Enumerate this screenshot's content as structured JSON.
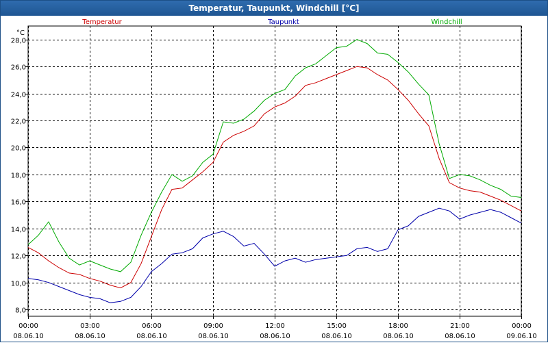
{
  "window": {
    "title": "Temperatur, Taupunkt, Windchill [°C]"
  },
  "chart_data": {
    "type": "line",
    "title": "Temperatur, Taupunkt, Windchill [°C]",
    "ylabel": "°C",
    "ylim": [
      7.5,
      29.0
    ],
    "yticks": [
      8,
      10,
      12,
      14,
      16,
      18,
      20,
      22,
      24,
      26,
      28
    ],
    "ytick_labels": [
      "8,0",
      "10,0",
      "12,0",
      "14,0",
      "16,0",
      "18,0",
      "20,0",
      "22,0",
      "24,0",
      "26,0",
      "28,0"
    ],
    "xlim": [
      0,
      24
    ],
    "xticks": [
      0,
      3,
      6,
      9,
      12,
      15,
      18,
      21,
      24
    ],
    "xtick_labels": [
      [
        "00:00",
        "08.06.10"
      ],
      [
        "03:00",
        "08.06.10"
      ],
      [
        "06:00",
        "08.06.10"
      ],
      [
        "09:00",
        "08.06.10"
      ],
      [
        "12:00",
        "08.06.10"
      ],
      [
        "15:00",
        "08.06.10"
      ],
      [
        "18:00",
        "08.06.10"
      ],
      [
        "21:00",
        "08.06.10"
      ],
      [
        "00:00",
        "09.06.10"
      ]
    ],
    "grid": true,
    "series": [
      {
        "name": "Temperatur",
        "color": "#cc0000",
        "x": [
          0,
          0.5,
          1,
          1.5,
          2,
          2.5,
          3,
          3.5,
          4,
          4.5,
          5,
          5.5,
          6,
          6.5,
          7,
          7.5,
          8,
          8.5,
          9,
          9.5,
          10,
          10.5,
          11,
          11.5,
          12,
          12.5,
          13,
          13.5,
          14,
          14.5,
          15,
          15.5,
          16,
          16.5,
          17,
          17.5,
          18,
          18.5,
          19,
          19.5,
          20,
          20.5,
          21,
          21.5,
          22,
          22.5,
          23,
          23.5,
          24
        ],
        "y": [
          12.6,
          12.2,
          11.6,
          11.1,
          10.7,
          10.6,
          10.3,
          10.1,
          9.8,
          9.6,
          10.0,
          11.4,
          13.4,
          15.4,
          16.9,
          17.0,
          17.6,
          18.2,
          18.9,
          20.4,
          20.9,
          21.2,
          21.6,
          22.5,
          23.0,
          23.3,
          23.8,
          24.6,
          24.8,
          25.1,
          25.4,
          25.7,
          26.0,
          25.9,
          25.4,
          25.0,
          24.3,
          23.5,
          22.5,
          21.6,
          19.2,
          17.4,
          17.0,
          16.8,
          16.7,
          16.4,
          16.1,
          15.7,
          15.3
        ]
      },
      {
        "name": "Taupunkt",
        "color": "#0000aa",
        "x": [
          0,
          0.5,
          1,
          1.5,
          2,
          2.5,
          3,
          3.5,
          4,
          4.5,
          5,
          5.5,
          6,
          6.5,
          7,
          7.5,
          8,
          8.5,
          9,
          9.5,
          10,
          10.5,
          11,
          11.5,
          12,
          12.5,
          13,
          13.5,
          14,
          14.5,
          15,
          15.5,
          16,
          16.5,
          17,
          17.5,
          18,
          18.5,
          19,
          19.5,
          20,
          20.5,
          21,
          21.5,
          22,
          22.5,
          23,
          23.5,
          24
        ],
        "y": [
          10.3,
          10.2,
          10.0,
          9.7,
          9.4,
          9.1,
          8.9,
          8.8,
          8.5,
          8.6,
          8.9,
          9.7,
          10.8,
          11.4,
          12.1,
          12.2,
          12.5,
          13.3,
          13.6,
          13.8,
          13.4,
          12.7,
          12.9,
          12.1,
          11.2,
          11.6,
          11.8,
          11.5,
          11.7,
          11.8,
          11.9,
          12.0,
          12.5,
          12.6,
          12.3,
          12.5,
          13.9,
          14.2,
          14.9,
          15.2,
          15.5,
          15.3,
          14.7,
          15.0,
          15.2,
          15.4,
          15.2,
          14.8,
          14.4
        ]
      },
      {
        "name": "Windchill",
        "color": "#00aa00",
        "x": [
          0,
          0.5,
          1,
          1.5,
          2,
          2.5,
          3,
          3.5,
          4,
          4.5,
          5,
          5.5,
          6,
          6.5,
          7,
          7.5,
          8,
          8.5,
          9,
          9.5,
          10,
          10.5,
          11,
          11.5,
          12,
          12.5,
          13,
          13.5,
          14,
          14.5,
          15,
          15.5,
          16,
          16.5,
          17,
          17.5,
          18,
          18.5,
          19,
          19.5,
          20,
          20.5,
          21,
          21.5,
          22,
          22.5,
          23,
          23.5,
          24
        ],
        "y": [
          12.8,
          13.5,
          14.5,
          13.0,
          11.8,
          11.3,
          11.6,
          11.3,
          11.0,
          10.8,
          11.5,
          13.5,
          15.2,
          16.7,
          18.0,
          17.5,
          17.9,
          18.9,
          19.5,
          21.9,
          21.8,
          22.1,
          22.7,
          23.5,
          24.0,
          24.3,
          25.3,
          25.9,
          26.2,
          26.8,
          27.4,
          27.5,
          28.0,
          27.7,
          27.0,
          26.9,
          26.3,
          25.6,
          24.7,
          23.9,
          20.3,
          17.7,
          18.0,
          17.9,
          17.6,
          17.2,
          16.9,
          16.4,
          16.3
        ]
      }
    ]
  }
}
